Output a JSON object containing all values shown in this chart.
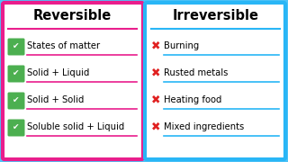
{
  "title_left": "Reversible",
  "title_right": "Irreversible",
  "left_items": [
    "States of matter",
    "Solid + Liquid",
    "Solid + Solid",
    "Soluble solid + Liquid"
  ],
  "right_items": [
    "Burning",
    "Rusted metals",
    "Heating food",
    "Mixed ingredients"
  ],
  "check_color": "#4caf50",
  "cross_color": "#e02020",
  "underline_color_left": "#e91e8c",
  "underline_color_right": "#29b6f6",
  "left_border_color": "#e91e8c",
  "right_border_color": "#29b6f6",
  "outer_bg": "#4fc3f7",
  "title_fontsize": 10.5,
  "item_fontsize": 7.2
}
